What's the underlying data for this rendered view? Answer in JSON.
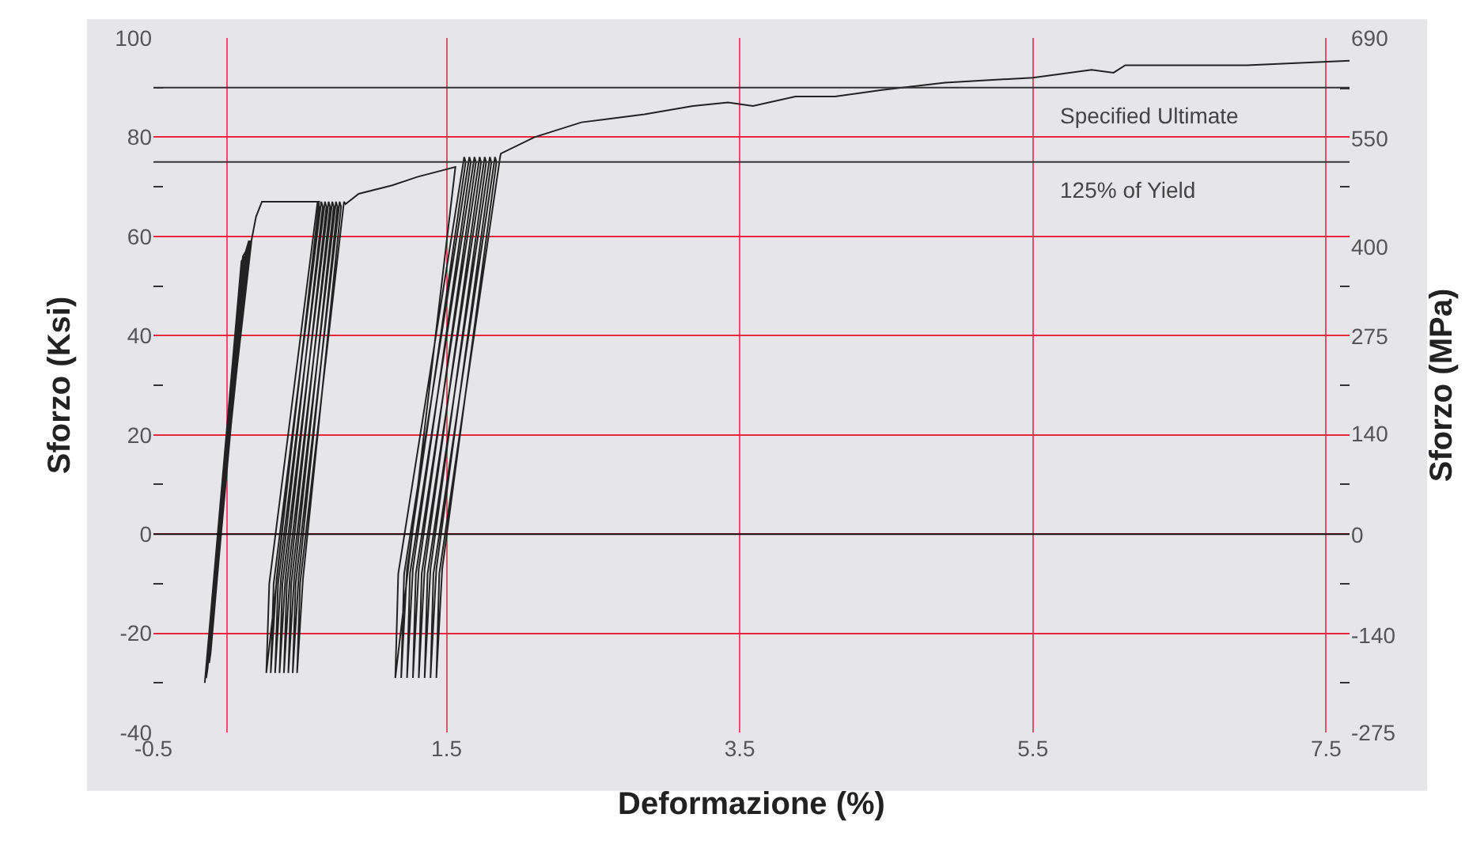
{
  "chart_data": {
    "type": "line",
    "xlabel": "Deformazione (%)",
    "ylabel": "Sforzo (Ksi)",
    "y2label": "Sforzo (MPa)",
    "xlim": [
      -0.5,
      7.66
    ],
    "ylim": [
      -40,
      100
    ],
    "y2lim": [
      -275,
      690
    ],
    "xticks": [
      -0.5,
      {
        "value": 0,
        "label": null
      },
      1.5,
      3.5,
      5.5,
      7.5
    ],
    "yticks": [
      -40,
      {
        "value": -30,
        "label": null
      },
      -20,
      {
        "value": -10,
        "label": null
      },
      0,
      {
        "value": 10,
        "label": null
      },
      20,
      {
        "value": 30,
        "label": null
      },
      40,
      {
        "value": 50,
        "label": null
      },
      60,
      {
        "value": 70,
        "label": null
      },
      80,
      {
        "value": 90,
        "label": null
      },
      100
    ],
    "y2ticks": [
      -275,
      {
        "value": -206,
        "label": null
      },
      -140,
      {
        "value": -68,
        "label": null
      },
      0,
      {
        "value": 70,
        "label": null
      },
      140,
      {
        "value": 207,
        "label": null
      },
      275,
      {
        "value": 345,
        "label": null
      },
      400,
      {
        "value": 483,
        "label": null
      },
      550,
      {
        "value": 620,
        "label": null
      },
      690
    ],
    "grid": true,
    "marker": "none",
    "line_style": "solid",
    "ref_lines": [
      {
        "axis": "y",
        "value": 90,
        "label": "Specified Ultimate",
        "color": "#333333"
      },
      {
        "axis": "y",
        "value": 75,
        "label": "125% of Yield",
        "color": "#333333"
      },
      {
        "axis": "y",
        "value": 0,
        "label": null,
        "color": "#111111"
      }
    ],
    "series": [
      {
        "color": "#222222",
        "x": [
          -0.15,
          0.1,
          0.12,
          -0.14,
          -0.13,
          0.11,
          0.13,
          -0.12,
          -0.11,
          0.13,
          0.14,
          -0.1,
          -0.1,
          0.14,
          0.15,
          -0.09,
          -0.08,
          0.15,
          0.16,
          -0.07,
          -0.06,
          0.17,
          0.2,
          0.24,
          0.63,
          0.27,
          0.29,
          0.62,
          0.63,
          0.34,
          0.3,
          0.32,
          0.645,
          0.655,
          0.37,
          0.33,
          0.35,
          0.67,
          0.68,
          0.4,
          0.36,
          0.38,
          0.695,
          0.705,
          0.43,
          0.39,
          0.41,
          0.72,
          0.73,
          0.46,
          0.42,
          0.44,
          0.745,
          0.755,
          0.49,
          0.45,
          0.47,
          0.77,
          0.78,
          0.52,
          0.48,
          0.5,
          0.8,
          0.81,
          0.9,
          1.13,
          1.3,
          1.56,
          1.15,
          1.17,
          1.62,
          1.63,
          1.23,
          1.19,
          1.21,
          1.655,
          1.665,
          1.27,
          1.23,
          1.25,
          1.69,
          1.7,
          1.31,
          1.27,
          1.29,
          1.725,
          1.735,
          1.35,
          1.31,
          1.33,
          1.76,
          1.77,
          1.39,
          1.35,
          1.37,
          1.795,
          1.805,
          1.43,
          1.39,
          1.41,
          1.83,
          1.84,
          1.47,
          1.43,
          1.45,
          1.865,
          1.87,
          2.1,
          2.42,
          2.85,
          3.18,
          3.42,
          3.59,
          3.88,
          4.15,
          4.47,
          4.9,
          5.5,
          5.9,
          6.05,
          6.13,
          6.96,
          7.66
        ],
        "values": [
          -30,
          55,
          56,
          -29,
          -27,
          56,
          57,
          -26,
          -24,
          57,
          58,
          -20,
          -14,
          58,
          59,
          -12,
          -10,
          59,
          59,
          -6,
          0,
          59.4,
          64,
          67,
          67,
          -28,
          -10,
          67,
          66,
          -9,
          -28,
          -10,
          67,
          66,
          -9,
          -28,
          -10,
          67,
          66,
          -9,
          -28,
          -10,
          67,
          66,
          -9,
          -28,
          -10,
          67,
          66,
          -9,
          -28,
          -10,
          67,
          66,
          -9,
          -28,
          -10,
          67,
          66,
          -9,
          -28,
          -10,
          67,
          66.5,
          68.6,
          70.3,
          72,
          74,
          -29,
          -8,
          76,
          75,
          -7,
          -29,
          -8,
          76,
          75,
          -7,
          -29,
          -8,
          76,
          75,
          -7,
          -29,
          -8,
          76,
          75,
          -7,
          -29,
          -8,
          76,
          75,
          -7,
          -29,
          -8,
          76,
          75,
          -7,
          -29,
          -8,
          76,
          75,
          -7,
          -29,
          -8,
          76,
          76.7,
          80,
          83,
          84.6,
          86.3,
          87,
          86.3,
          88.2,
          88.2,
          89.5,
          91,
          92,
          93.6,
          93,
          94.5,
          94.5,
          95.4
        ]
      }
    ]
  }
}
